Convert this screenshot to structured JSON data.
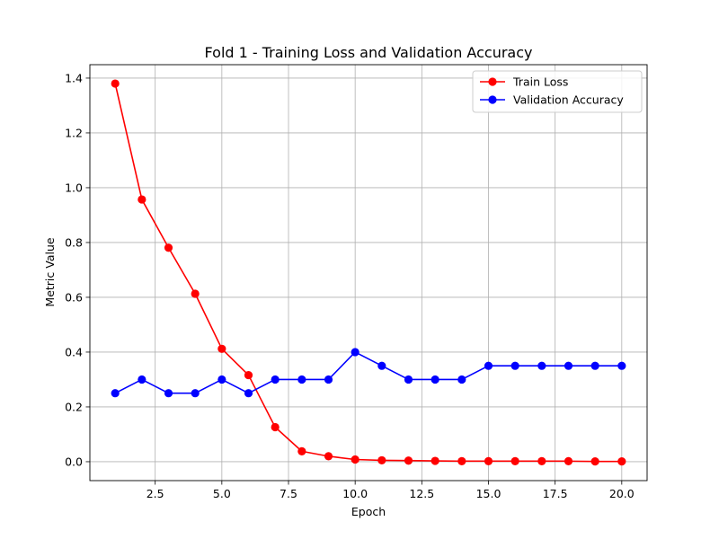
{
  "chart_data": {
    "type": "line",
    "title": "Fold 1 - Training Loss and Validation Accuracy",
    "xlabel": "Epoch",
    "ylabel": "Metric Value",
    "xlim": [
      0.05,
      20.95
    ],
    "ylim": [
      -0.069,
      1.449
    ],
    "x_ticks": [
      2.5,
      5.0,
      7.5,
      10.0,
      12.5,
      15.0,
      17.5,
      20.0
    ],
    "x_tick_labels": [
      "2.5",
      "5.0",
      "7.5",
      "10.0",
      "12.5",
      "15.0",
      "17.5",
      "20.0"
    ],
    "y_ticks": [
      0.0,
      0.2,
      0.4,
      0.6,
      0.8,
      1.0,
      1.2,
      1.4
    ],
    "y_tick_labels": [
      "0.0",
      "0.2",
      "0.4",
      "0.6",
      "0.8",
      "1.0",
      "1.2",
      "1.4"
    ],
    "grid": true,
    "legend_position": "top-right",
    "x": [
      1,
      2,
      3,
      4,
      5,
      6,
      7,
      8,
      9,
      10,
      11,
      12,
      13,
      14,
      15,
      16,
      17,
      18,
      19,
      20
    ],
    "series": [
      {
        "name": "Train Loss",
        "color": "#ff0000",
        "marker": "circle",
        "values": [
          1.38,
          0.957,
          0.781,
          0.613,
          0.412,
          0.316,
          0.126,
          0.038,
          0.02,
          0.008,
          0.005,
          0.004,
          0.003,
          0.002,
          0.002,
          0.002,
          0.002,
          0.002,
          0.001,
          0.001
        ]
      },
      {
        "name": "Validation Accuracy",
        "color": "#0000ff",
        "marker": "circle",
        "values": [
          0.25,
          0.3,
          0.25,
          0.25,
          0.3,
          0.25,
          0.3,
          0.3,
          0.3,
          0.4,
          0.35,
          0.3,
          0.3,
          0.3,
          0.35,
          0.35,
          0.35,
          0.35,
          0.35,
          0.35
        ]
      }
    ]
  }
}
